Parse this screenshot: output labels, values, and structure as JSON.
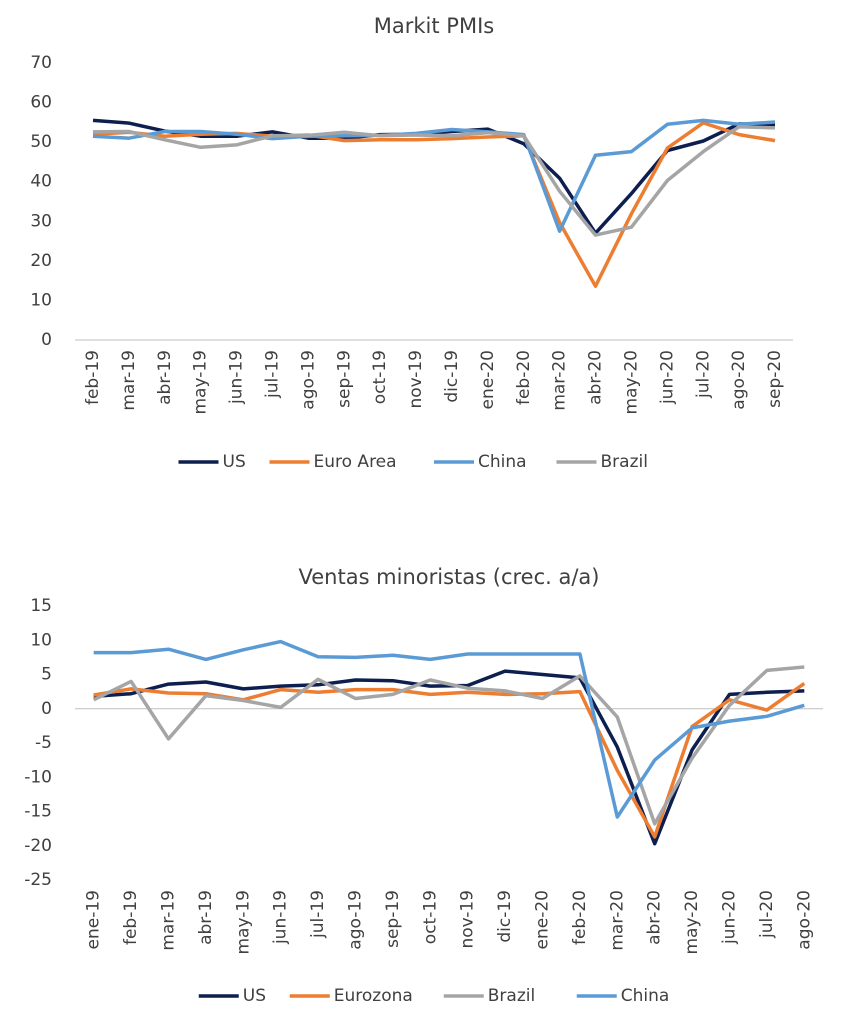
{
  "chart_data": [
    {
      "type": "line",
      "title": "Markit PMIs",
      "categories": [
        "feb-19",
        "mar-19",
        "abr-19",
        "may-19",
        "jun-19",
        "jul-19",
        "ago-19",
        "sep-19",
        "oct-19",
        "nov-19",
        "dic-19",
        "ene-20",
        "feb-20",
        "mar-20",
        "abr-20",
        "may-20",
        "jun-20",
        "jul-20",
        "ago-20",
        "sep-20"
      ],
      "series": [
        {
          "name": "US",
          "color": "#0d1f4f",
          "values": [
            55.5,
            54.8,
            52.8,
            51.5,
            51.5,
            52.6,
            51,
            51,
            51.9,
            52,
            52.7,
            53.3,
            49.6,
            40.9,
            27,
            37,
            47.9,
            50.3,
            54.6,
            54.3
          ]
        },
        {
          "name": "Euro Area",
          "color": "#ed7d31",
          "values": [
            52,
            52.5,
            51.5,
            52,
            52.2,
            51.5,
            51.8,
            50.4,
            50.6,
            50.6,
            50.9,
            51.3,
            51.6,
            29.7,
            13.6,
            31.9,
            48.5,
            54.9,
            51.9,
            50.4
          ]
        },
        {
          "name": "China",
          "color": "#5b9bd5",
          "values": [
            51.5,
            51,
            52.7,
            52.7,
            52,
            50.9,
            51.5,
            51.6,
            51.7,
            52.2,
            53.2,
            52.6,
            51.9,
            27.5,
            46.7,
            47.6,
            54.5,
            55.5,
            54.5,
            55.1
          ]
        },
        {
          "name": "Brazil",
          "color": "#a5a5a5",
          "values": [
            52.6,
            52.7,
            50.6,
            48.7,
            49.3,
            51.6,
            51.7,
            52.5,
            51.6,
            51.8,
            51.6,
            52.4,
            51.6,
            37.6,
            26.5,
            28.5,
            40.3,
            47.6,
            53.9,
            53.6
          ]
        }
      ],
      "ylim": [
        0,
        70
      ],
      "yticks": [
        0,
        10,
        20,
        30,
        40,
        50,
        60,
        70
      ],
      "grid": false,
      "legend": "bottom"
    },
    {
      "type": "line",
      "title": "Ventas minoristas (crec. a/a)",
      "categories": [
        "ene-19",
        "feb-19",
        "mar-19",
        "abr-19",
        "may-19",
        "jun-19",
        "jul-19",
        "ago-19",
        "sep-19",
        "oct-19",
        "nov-19",
        "dic-19",
        "ene-20",
        "feb-20",
        "mar-20",
        "abr-20",
        "may-20",
        "jun-20",
        "jul-20",
        "ago-20"
      ],
      "series": [
        {
          "name": "US",
          "color": "#0d1f4f",
          "values": [
            1.8,
            2.2,
            3.6,
            3.9,
            2.9,
            3.3,
            3.5,
            4.2,
            4.1,
            3.3,
            3.4,
            5.5,
            5,
            4.5,
            -5.6,
            -19.7,
            -6,
            2.1,
            2.4,
            2.6
          ]
        },
        {
          "name": "Eurozona",
          "color": "#ed7d31",
          "values": [
            2,
            2.9,
            2.3,
            2.2,
            1.3,
            2.8,
            2.4,
            2.8,
            2.8,
            2.1,
            2.4,
            2.1,
            2.2,
            2.5,
            -9,
            -18.7,
            -2.6,
            1.3,
            -0.2,
            3.7
          ]
        },
        {
          "name": "Brazil",
          "color": "#a5a5a5",
          "values": [
            1.3,
            4,
            -4.4,
            1.9,
            1.2,
            0.2,
            4.3,
            1.5,
            2.1,
            4.2,
            3,
            2.6,
            1.5,
            4.8,
            -1.2,
            -16.8,
            -7.2,
            0.5,
            5.6,
            6.1
          ]
        },
        {
          "name": "China",
          "color": "#5b9bd5",
          "values": [
            8.2,
            8.2,
            8.7,
            7.2,
            8.6,
            9.8,
            7.6,
            7.5,
            7.8,
            7.2,
            8,
            8,
            8,
            8,
            -15.8,
            -7.5,
            -2.8,
            -1.8,
            -1.1,
            0.5
          ]
        }
      ],
      "ylim": [
        -25,
        15
      ],
      "yticks": [
        -25,
        -20,
        -15,
        -10,
        -5,
        0,
        5,
        10,
        15
      ],
      "grid": false,
      "legend": "bottom"
    }
  ]
}
